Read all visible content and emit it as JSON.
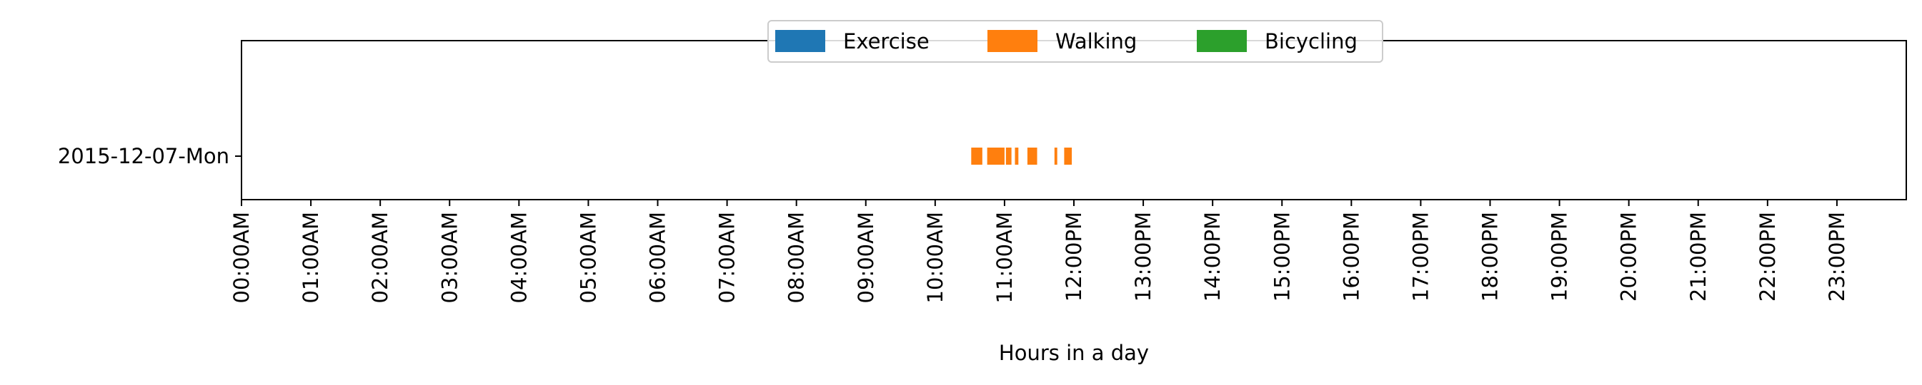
{
  "chart_data": {
    "type": "bar",
    "orientation": "horizontal-timeline",
    "xlabel": "Hours in a day",
    "ylabel": "",
    "title": "",
    "xlim": [
      0,
      24
    ],
    "grid": false,
    "legend_position": "top-center",
    "x_tick_labels": [
      "00:00AM",
      "01:00AM",
      "02:00AM",
      "03:00AM",
      "04:00AM",
      "05:00AM",
      "06:00AM",
      "07:00AM",
      "08:00AM",
      "09:00AM",
      "10:00AM",
      "11:00AM",
      "12:00PM",
      "13:00PM",
      "14:00PM",
      "15:00PM",
      "16:00PM",
      "17:00PM",
      "18:00PM",
      "19:00PM",
      "20:00PM",
      "21:00PM",
      "22:00PM",
      "23:00PM"
    ],
    "categories": [
      "2015-12-07-Mon"
    ],
    "series": [
      {
        "name": "Exercise",
        "color": "#1f77b4",
        "intervals": [
          []
        ]
      },
      {
        "name": "Walking",
        "color": "#ff7f0e",
        "intervals": [
          [
            [
              10.52,
              10.68
            ],
            [
              10.75,
              11.0
            ],
            [
              11.02,
              11.1
            ],
            [
              11.15,
              11.2
            ],
            [
              11.33,
              11.47
            ],
            [
              11.72,
              11.76
            ],
            [
              11.86,
              11.97
            ]
          ]
        ]
      },
      {
        "name": "Bicycling",
        "color": "#2ca02c",
        "intervals": [
          []
        ]
      }
    ]
  }
}
